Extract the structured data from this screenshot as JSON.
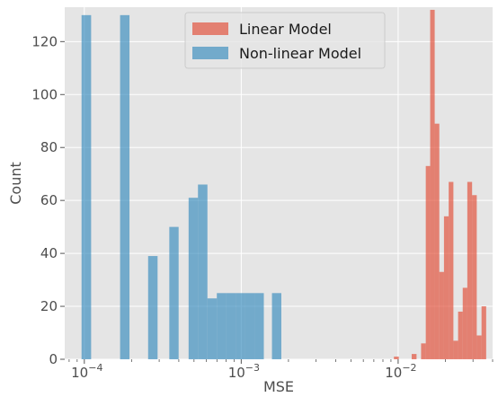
{
  "chart_data": {
    "type": "bar",
    "title": "",
    "xlabel": "MSE",
    "ylabel": "Count",
    "xscale": "log",
    "xlim": [
      7.5e-05,
      0.04
    ],
    "ylim": [
      0,
      133
    ],
    "x_ticks": [
      {
        "value": 0.0001,
        "base": "10",
        "exp": "−4"
      },
      {
        "value": 0.001,
        "base": "10",
        "exp": "−3"
      },
      {
        "value": 0.01,
        "base": "10",
        "exp": "−2"
      }
    ],
    "y_ticks": [
      0,
      20,
      40,
      60,
      80,
      100,
      120
    ],
    "grid": true,
    "legend_position": "top-center",
    "series": [
      {
        "name": "Linear Model",
        "color": "#e24a33",
        "bins": [
          {
            "x0": 0.0094,
            "x1": 0.0101,
            "value": 1
          },
          {
            "x0": 0.0122,
            "x1": 0.0131,
            "value": 2
          },
          {
            "x0": 0.014,
            "x1": 0.015,
            "value": 6
          },
          {
            "x0": 0.015,
            "x1": 0.016,
            "value": 73
          },
          {
            "x0": 0.016,
            "x1": 0.0171,
            "value": 132
          },
          {
            "x0": 0.0171,
            "x1": 0.0183,
            "value": 89
          },
          {
            "x0": 0.0183,
            "x1": 0.0196,
            "value": 33
          },
          {
            "x0": 0.0196,
            "x1": 0.021,
            "value": 54
          },
          {
            "x0": 0.021,
            "x1": 0.0225,
            "value": 67
          },
          {
            "x0": 0.0225,
            "x1": 0.0241,
            "value": 7
          },
          {
            "x0": 0.0241,
            "x1": 0.0258,
            "value": 18
          },
          {
            "x0": 0.0258,
            "x1": 0.0276,
            "value": 27
          },
          {
            "x0": 0.0276,
            "x1": 0.0296,
            "value": 67
          },
          {
            "x0": 0.0296,
            "x1": 0.0317,
            "value": 62
          },
          {
            "x0": 0.0317,
            "x1": 0.034,
            "value": 9
          },
          {
            "x0": 0.034,
            "x1": 0.0364,
            "value": 20
          }
        ]
      },
      {
        "name": "Non-linear Model",
        "color": "#348abd",
        "bins": [
          {
            "x0": 9.6e-05,
            "x1": 0.0001105,
            "value": 130
          },
          {
            "x0": 0.000169,
            "x1": 0.000194,
            "value": 130
          },
          {
            "x0": 0.000255,
            "x1": 0.000293,
            "value": 39
          },
          {
            "x0": 0.000348,
            "x1": 0.000399,
            "value": 50
          },
          {
            "x0": 0.000462,
            "x1": 0.00053,
            "value": 61
          },
          {
            "x0": 0.00053,
            "x1": 0.000609,
            "value": 66
          },
          {
            "x0": 0.000609,
            "x1": 0.000699,
            "value": 23
          },
          {
            "x0": 0.000699,
            "x1": 0.000802,
            "value": 25
          },
          {
            "x0": 0.000802,
            "x1": 0.000921,
            "value": 25
          },
          {
            "x0": 0.000921,
            "x1": 0.001057,
            "value": 25
          },
          {
            "x0": 0.001057,
            "x1": 0.001214,
            "value": 25
          },
          {
            "x0": 0.001214,
            "x1": 0.001393,
            "value": 25
          },
          {
            "x0": 0.00157,
            "x1": 0.001801,
            "value": 25
          }
        ]
      }
    ]
  }
}
